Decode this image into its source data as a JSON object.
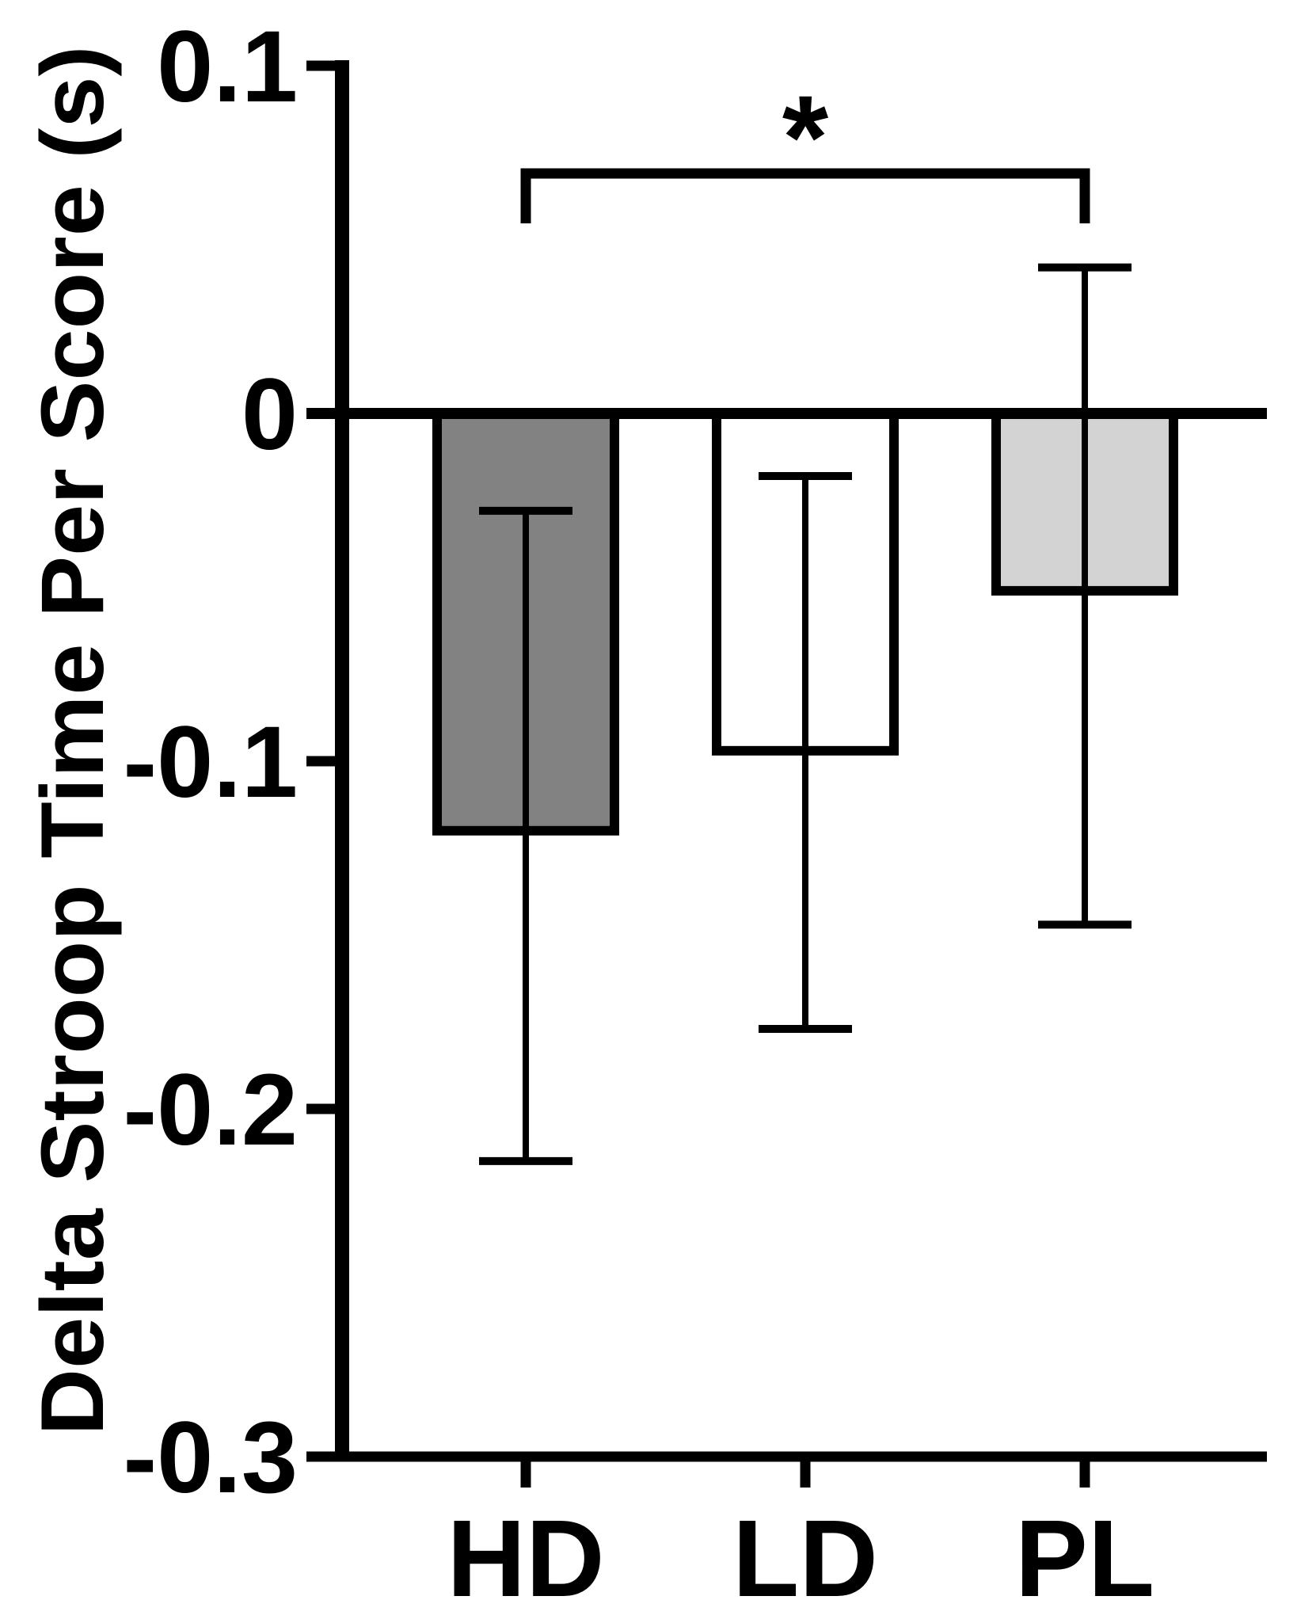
{
  "chart_data": {
    "type": "bar",
    "title": "",
    "xlabel": "",
    "ylabel": "Delta Stroop Time Per Score (s)",
    "categories": [
      "HD",
      "LD",
      "PL"
    ],
    "values": [
      -0.12,
      -0.097,
      -0.051
    ],
    "error_top": [
      -0.028,
      -0.018,
      0.042
    ],
    "error_bottom": [
      -0.215,
      -0.177,
      -0.147
    ],
    "bar_fills": [
      "#828282",
      "#ffffff",
      "#d3d3d3"
    ],
    "bar_edge_color": "#000000",
    "axis_color": "#000000",
    "ylim": [
      -0.3,
      0.1
    ],
    "yticks": [
      0.1,
      0,
      -0.1,
      -0.2,
      -0.3
    ],
    "ytick_labels": [
      "0.1",
      "0",
      "-0.1",
      "-0.2",
      "-0.3"
    ],
    "grid": false,
    "legend_position": "none",
    "error_bar_style": "capped",
    "significance": {
      "between": [
        "HD",
        "PL"
      ],
      "label": "*"
    }
  }
}
